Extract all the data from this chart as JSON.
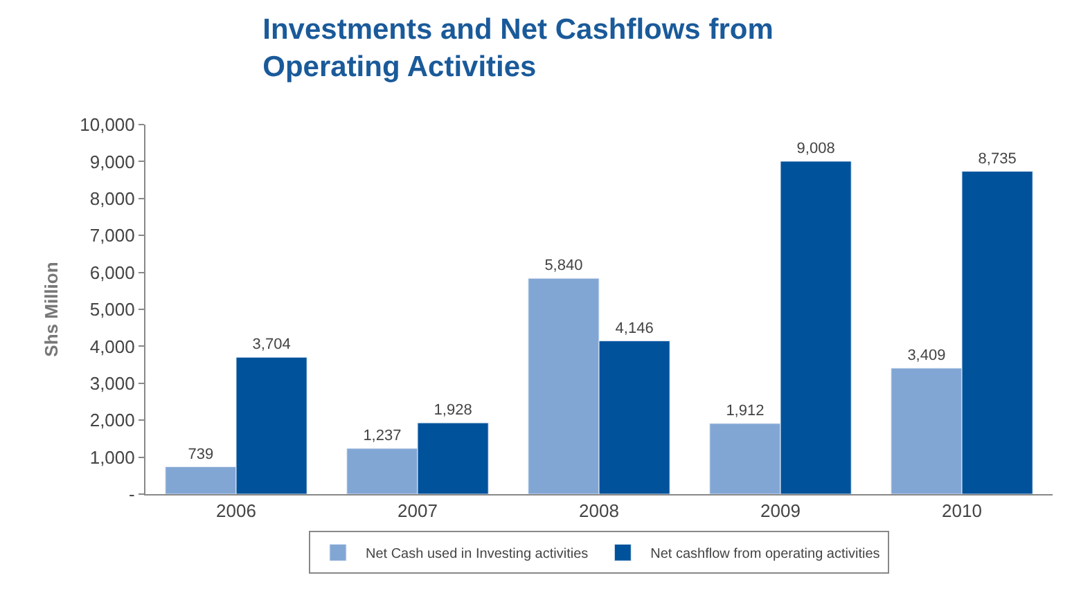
{
  "chart_data": {
    "type": "bar",
    "title": "Investments and Net Cashflows from Operating Activities",
    "ylabel": "Shs Million",
    "categories": [
      "2006",
      "2007",
      "2008",
      "2009",
      "2010"
    ],
    "series": [
      {
        "name": "Net Cash used in Investing activities",
        "color": "#82a6d4",
        "values": [
          739,
          1237,
          5840,
          1912,
          3409
        ],
        "value_labels": [
          "739",
          "1,237",
          "5,840",
          "1,912",
          "3,409"
        ]
      },
      {
        "name": "Net cashflow from operating activities",
        "color": "#00529b",
        "values": [
          3704,
          1928,
          4146,
          9008,
          8735
        ],
        "value_labels": [
          "3,704",
          "1,928",
          "4,146",
          "9,008",
          "8,735"
        ]
      }
    ],
    "ylim": [
      0,
      10000
    ],
    "yticks": [
      {
        "value": 0,
        "label": "-"
      },
      {
        "value": 1000,
        "label": "1,000"
      },
      {
        "value": 2000,
        "label": "2,000"
      },
      {
        "value": 3000,
        "label": "3,000"
      },
      {
        "value": 4000,
        "label": "4,000"
      },
      {
        "value": 5000,
        "label": "5,000"
      },
      {
        "value": 6000,
        "label": "6,000"
      },
      {
        "value": 7000,
        "label": "7,000"
      },
      {
        "value": 8000,
        "label": "8,000"
      },
      {
        "value": 9000,
        "label": "9,000"
      },
      {
        "value": 10000,
        "label": "10,000"
      }
    ],
    "legend": "bottom"
  }
}
